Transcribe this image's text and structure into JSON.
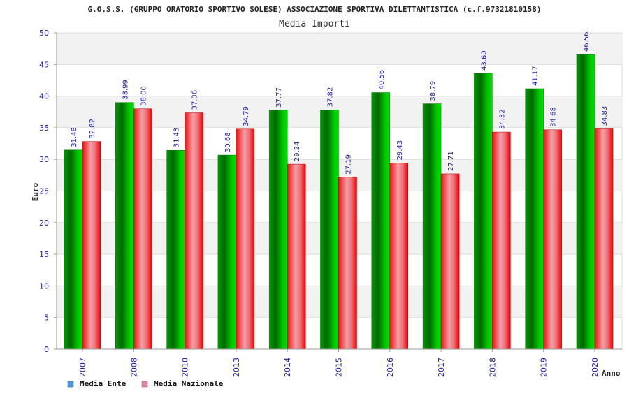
{
  "chart_data": {
    "type": "bar",
    "title": "G.O.S.S. (GRUPPO ORATORIO SPORTIVO SOLESE) ASSOCIAZIONE SPORTIVA DILETTANTISTICA (c.f.97321810158)",
    "subtitle": "Media Importi",
    "xlabel": "Anno",
    "ylabel": "Euro",
    "ylim": [
      0,
      50
    ],
    "yticks": [
      "0",
      "5",
      "10",
      "15",
      "20",
      "25",
      "30",
      "35",
      "40",
      "45",
      "50"
    ],
    "categories": [
      "2007",
      "2008",
      "2010",
      "2013",
      "2014",
      "2015",
      "2016",
      "2017",
      "2018",
      "2019",
      "2020"
    ],
    "series": [
      {
        "name": "Media Ente",
        "color": "#00b400",
        "legend_color": "#5599dd",
        "values": [
          31.48,
          38.99,
          31.43,
          30.68,
          37.77,
          37.82,
          40.56,
          38.79,
          43.6,
          41.17,
          46.56
        ],
        "labels": [
          "31.48",
          "38.99",
          "31.43",
          "30.68",
          "37.77",
          "37.82",
          "40.56",
          "38.79",
          "43.60",
          "41.17",
          "46.56"
        ]
      },
      {
        "name": "Media Nazionale",
        "color": "#f01818",
        "legend_color": "#dd88aa",
        "values": [
          32.82,
          38.0,
          37.36,
          34.79,
          29.24,
          27.19,
          29.43,
          27.71,
          34.32,
          34.68,
          34.83
        ],
        "labels": [
          "32.82",
          "38.00",
          "37.36",
          "34.79",
          "29.24",
          "27.19",
          "29.43",
          "27.71",
          "34.32",
          "34.68",
          "34.83"
        ]
      }
    ],
    "grid": true,
    "legend_position": "bottom-left"
  }
}
